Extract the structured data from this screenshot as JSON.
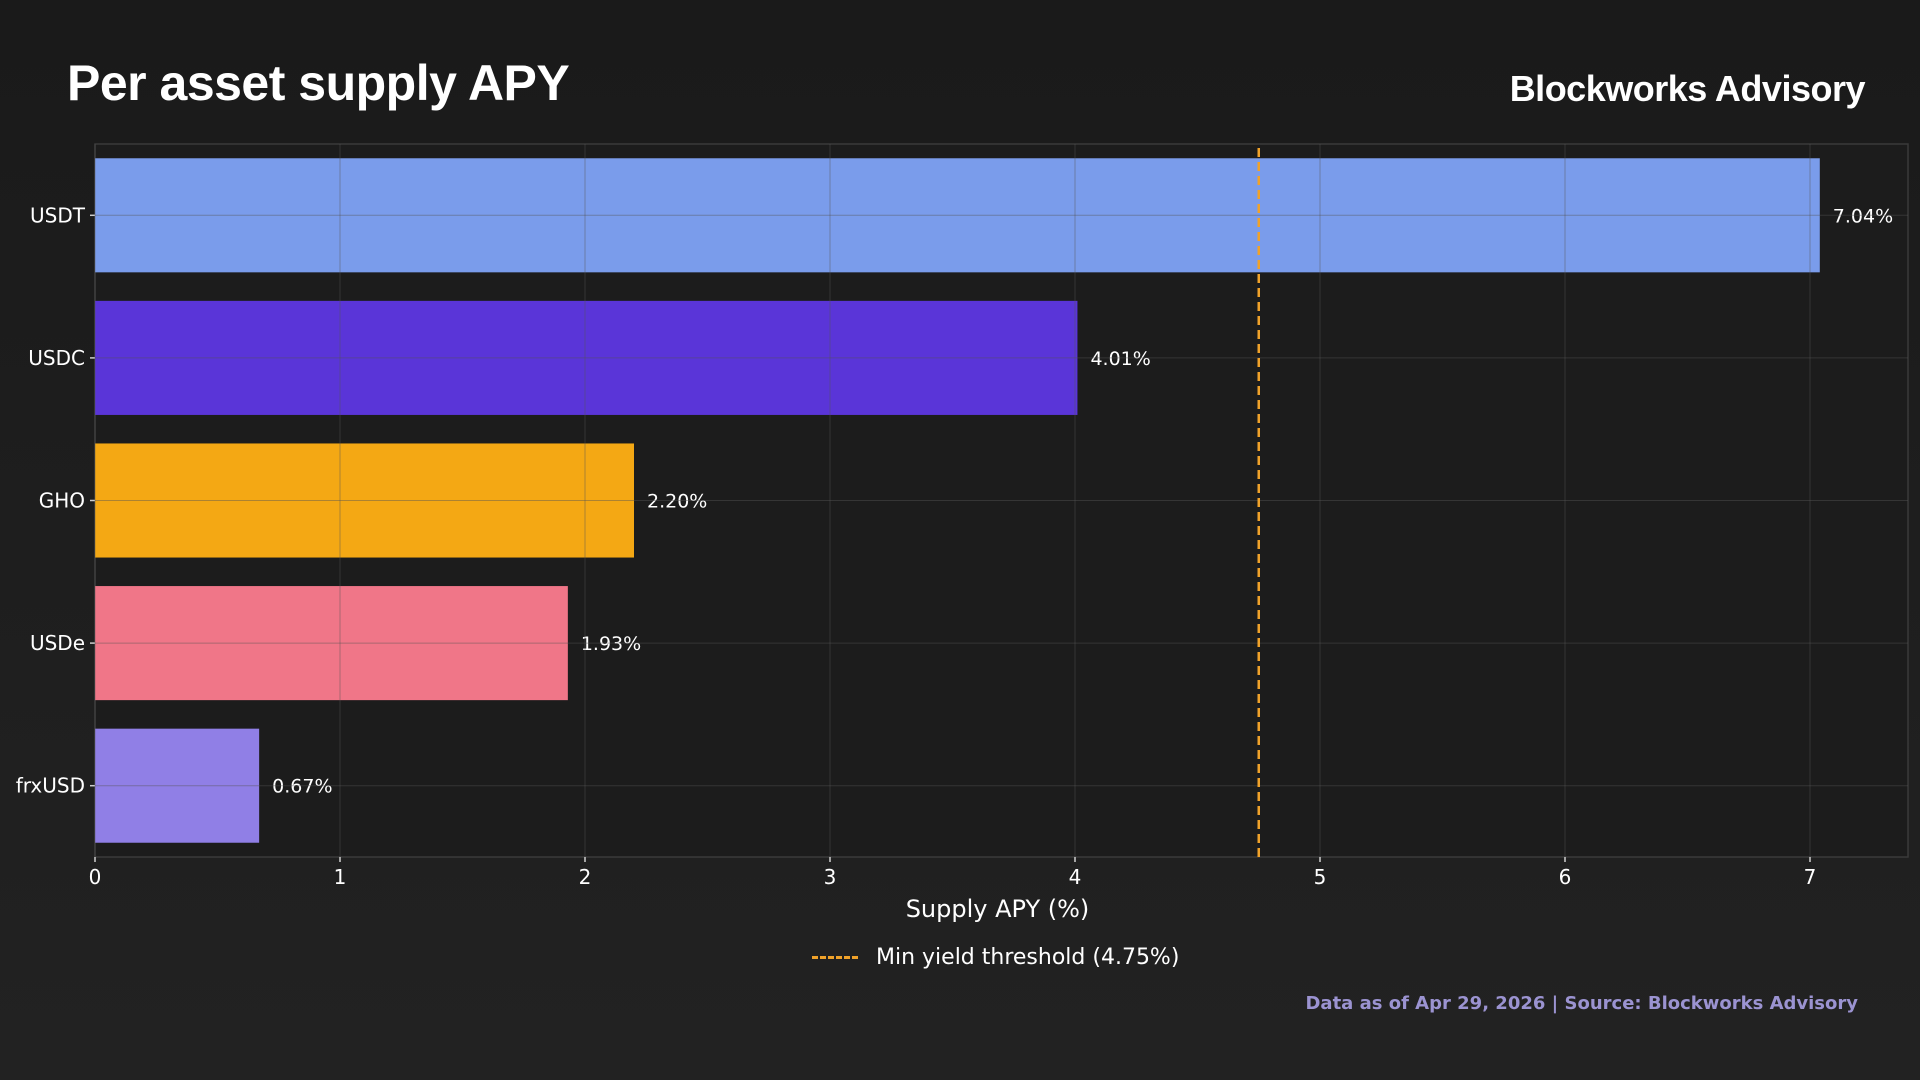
{
  "header": {
    "title": "Per asset supply APY",
    "brand": "Blockworks Advisory"
  },
  "footer": {
    "note": "Data as of Apr 29, 2026 | Source: Blockworks Advisory"
  },
  "colors": {
    "threshold": "#f0a22a",
    "grid": "#555555",
    "axis": "#cfcfcf"
  },
  "chart_data": {
    "type": "bar",
    "orientation": "horizontal",
    "title": "Per asset supply APY",
    "xlabel": "Supply APY (%)",
    "ylabel": "",
    "xlim": [
      0,
      7.4
    ],
    "x_ticks": [
      0,
      1,
      2,
      3,
      4,
      5,
      6,
      7
    ],
    "grid": true,
    "categories": [
      "USDT",
      "USDC",
      "GHO",
      "USDe",
      "frxUSD"
    ],
    "values": [
      7.04,
      4.01,
      2.2,
      1.93,
      0.67
    ],
    "value_labels": [
      "7.04%",
      "4.01%",
      "2.20%",
      "1.93%",
      "0.67%"
    ],
    "bar_colors": [
      "#7a9ceb",
      "#5a35d8",
      "#f4a814",
      "#f07688",
      "#907fe6"
    ],
    "reference_line": {
      "value": 4.75,
      "label": "Min yield threshold (4.75%)",
      "style": "dashed",
      "color": "#f0a22a"
    },
    "legend_position": "bottom-center"
  }
}
